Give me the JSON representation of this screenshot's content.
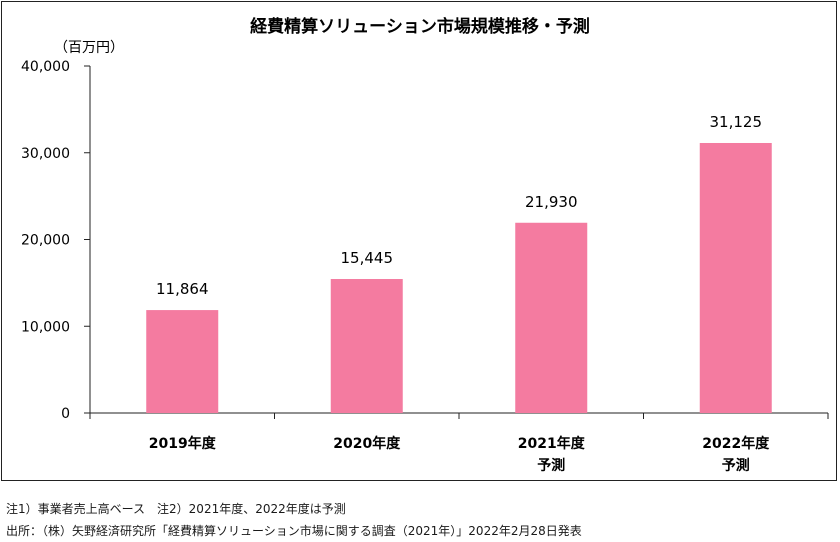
{
  "chart_data": {
    "type": "bar",
    "title": "経費精算ソリューション市場規模推移・予測",
    "unit_label": "（百万円）",
    "categories": [
      [
        "2019年度"
      ],
      [
        "2020年度"
      ],
      [
        "2021年度",
        "予測"
      ],
      [
        "2022年度",
        "予測"
      ]
    ],
    "values": [
      11864,
      15445,
      21930,
      31125
    ],
    "value_labels": [
      "11,864",
      "15,445",
      "21,930",
      "31,125"
    ],
    "ylim": [
      0,
      40000
    ],
    "yticks": [
      0,
      10000,
      20000,
      30000,
      40000
    ],
    "ytick_labels": [
      "0",
      "10,000",
      "20,000",
      "30,000",
      "40,000"
    ],
    "bar_color": "#f47ba0",
    "grid": false
  },
  "notes": {
    "note1": "注1）事業者売上高ベース　注2）2021年度、2022年度は予測",
    "source": "出所：（株）矢野経済研究所「経費精算ソリューション市場に関する調査（2021年）」2022年2月28日発表"
  }
}
